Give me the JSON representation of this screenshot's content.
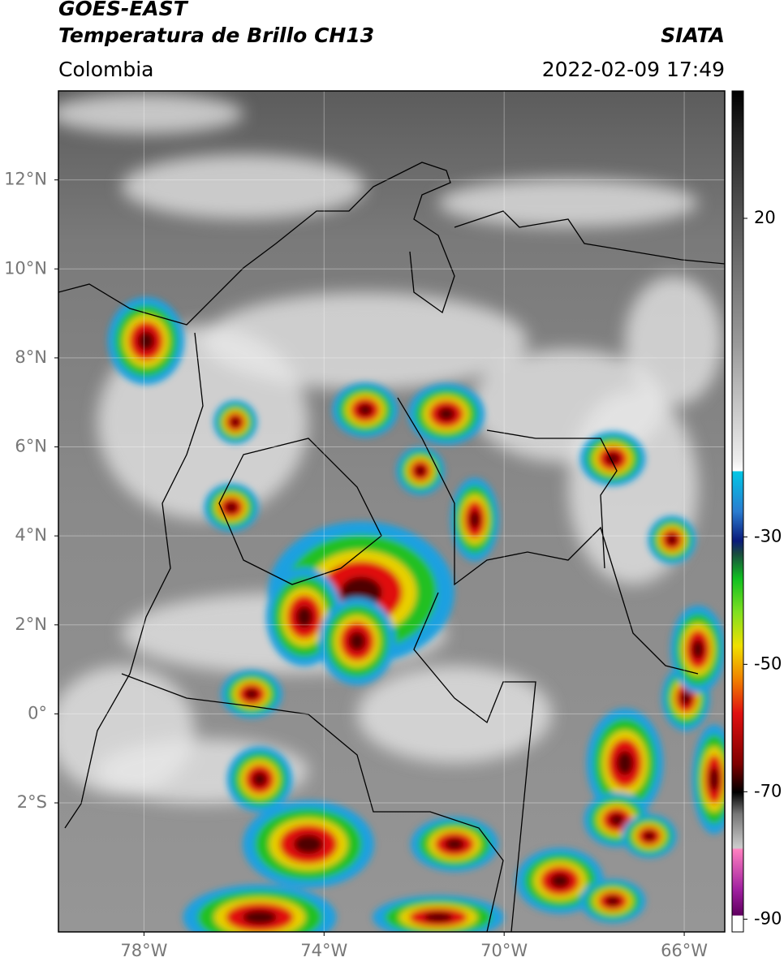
{
  "map": {
    "title": "GOES-EAST",
    "subtitle": "Temperatura de Brillo CH13",
    "source": "SIATA",
    "region": "Colombia",
    "datetime": "2022-02-09 17:49",
    "xlim": [
      -79.9,
      -65.1
    ],
    "ylim": [
      -4.9,
      14
    ],
    "xticks": [
      {
        "value": -78,
        "label": "78°W"
      },
      {
        "value": -74,
        "label": "74°W"
      },
      {
        "value": -70,
        "label": "70°W"
      },
      {
        "value": -66,
        "label": "66°W"
      }
    ],
    "yticks": [
      {
        "value": 12,
        "label": "12°N"
      },
      {
        "value": 10,
        "label": "10°N"
      },
      {
        "value": 8,
        "label": "8°N"
      },
      {
        "value": 6,
        "label": "6°N"
      },
      {
        "value": 4,
        "label": "4°N"
      },
      {
        "value": 2,
        "label": "2°N"
      },
      {
        "value": 0,
        "label": "0°"
      },
      {
        "value": -2,
        "label": "2°S"
      }
    ],
    "grid": true,
    "colorbar": {
      "lim": [
        -92,
        40
      ],
      "ticks": [
        20,
        -30,
        -50,
        -70,
        -90
      ]
    }
  }
}
